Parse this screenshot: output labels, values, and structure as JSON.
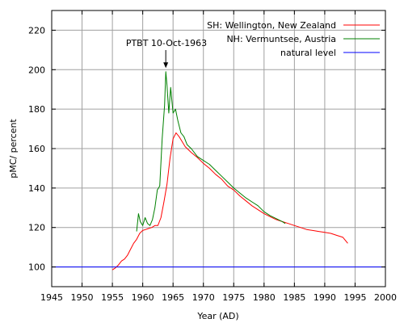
{
  "chart_data": {
    "type": "line",
    "xlabel": "Year (AD)",
    "ylabel": "pMC/ percent",
    "xlim": [
      1945,
      2000
    ],
    "ylim": [
      90,
      230
    ],
    "xticks": [
      1945,
      1950,
      1955,
      1960,
      1965,
      1970,
      1975,
      1980,
      1985,
      1990,
      1995,
      2000
    ],
    "yticks": [
      100,
      120,
      140,
      160,
      180,
      200,
      220
    ],
    "grid": true,
    "legend_position": "top-right",
    "annotation": {
      "text": "PTBT 10-Oct-1963",
      "x": 1963.8,
      "y": 200
    },
    "series": [
      {
        "name": "SH: Wellington, New Zealand",
        "color": "#ff0000",
        "points": [
          [
            1955.0,
            98.5
          ],
          [
            1955.5,
            99.5
          ],
          [
            1956.0,
            101
          ],
          [
            1956.5,
            103
          ],
          [
            1957.0,
            104
          ],
          [
            1957.5,
            106
          ],
          [
            1958.0,
            109
          ],
          [
            1958.5,
            112
          ],
          [
            1959.0,
            114
          ],
          [
            1959.5,
            117
          ],
          [
            1960.0,
            118.5
          ],
          [
            1960.5,
            119
          ],
          [
            1961.0,
            119.5
          ],
          [
            1961.5,
            120
          ],
          [
            1962.0,
            121
          ],
          [
            1962.5,
            121
          ],
          [
            1963.0,
            125
          ],
          [
            1963.5,
            133
          ],
          [
            1964.0,
            142
          ],
          [
            1964.5,
            155
          ],
          [
            1965.0,
            165
          ],
          [
            1965.5,
            168
          ],
          [
            1966.0,
            166
          ],
          [
            1967.0,
            161
          ],
          [
            1968.0,
            158
          ],
          [
            1969.0,
            155.5
          ],
          [
            1970.0,
            152.5
          ],
          [
            1971.0,
            150
          ],
          [
            1972.0,
            147
          ],
          [
            1973.0,
            144.5
          ],
          [
            1974.0,
            141
          ],
          [
            1975.0,
            139
          ],
          [
            1976.0,
            136
          ],
          [
            1977.0,
            133.5
          ],
          [
            1978.0,
            131
          ],
          [
            1979.0,
            129
          ],
          [
            1980.0,
            127
          ],
          [
            1981.0,
            125.5
          ],
          [
            1982.0,
            124
          ],
          [
            1983.0,
            123
          ],
          [
            1984.0,
            122
          ],
          [
            1985.0,
            121
          ],
          [
            1986.0,
            120
          ],
          [
            1987.0,
            119
          ],
          [
            1988.0,
            118.5
          ],
          [
            1989.0,
            118
          ],
          [
            1990.0,
            117.5
          ],
          [
            1991.0,
            117
          ],
          [
            1992.0,
            116
          ],
          [
            1993.0,
            115
          ],
          [
            1993.8,
            112
          ]
        ]
      },
      {
        "name": "NH: Vermuntsee, Austria",
        "color": "#008000",
        "points": [
          [
            1959.0,
            118
          ],
          [
            1959.3,
            127
          ],
          [
            1959.6,
            123
          ],
          [
            1960.0,
            121
          ],
          [
            1960.4,
            125
          ],
          [
            1960.8,
            122
          ],
          [
            1961.2,
            121
          ],
          [
            1961.6,
            124
          ],
          [
            1962.0,
            130
          ],
          [
            1962.4,
            139
          ],
          [
            1962.8,
            141
          ],
          [
            1963.2,
            165
          ],
          [
            1963.6,
            182
          ],
          [
            1963.8,
            199
          ],
          [
            1964.0,
            192
          ],
          [
            1964.3,
            178
          ],
          [
            1964.6,
            191
          ],
          [
            1965.0,
            178
          ],
          [
            1965.4,
            180
          ],
          [
            1965.8,
            174
          ],
          [
            1966.3,
            168
          ],
          [
            1966.8,
            166
          ],
          [
            1967.3,
            162
          ],
          [
            1968.0,
            160
          ],
          [
            1969.0,
            156
          ],
          [
            1970.0,
            154
          ],
          [
            1971.0,
            152
          ],
          [
            1972.0,
            149
          ],
          [
            1973.0,
            146
          ],
          [
            1974.0,
            143
          ],
          [
            1975.0,
            140
          ],
          [
            1976.0,
            137.5
          ],
          [
            1977.0,
            135
          ],
          [
            1978.0,
            133
          ],
          [
            1979.0,
            131
          ],
          [
            1980.0,
            128
          ],
          [
            1981.0,
            126
          ],
          [
            1982.0,
            124.5
          ],
          [
            1983.0,
            123
          ],
          [
            1983.5,
            122
          ]
        ]
      },
      {
        "name": "natural level",
        "color": "#0000ff",
        "points": [
          [
            1945,
            100
          ],
          [
            2000,
            100
          ]
        ]
      }
    ]
  }
}
